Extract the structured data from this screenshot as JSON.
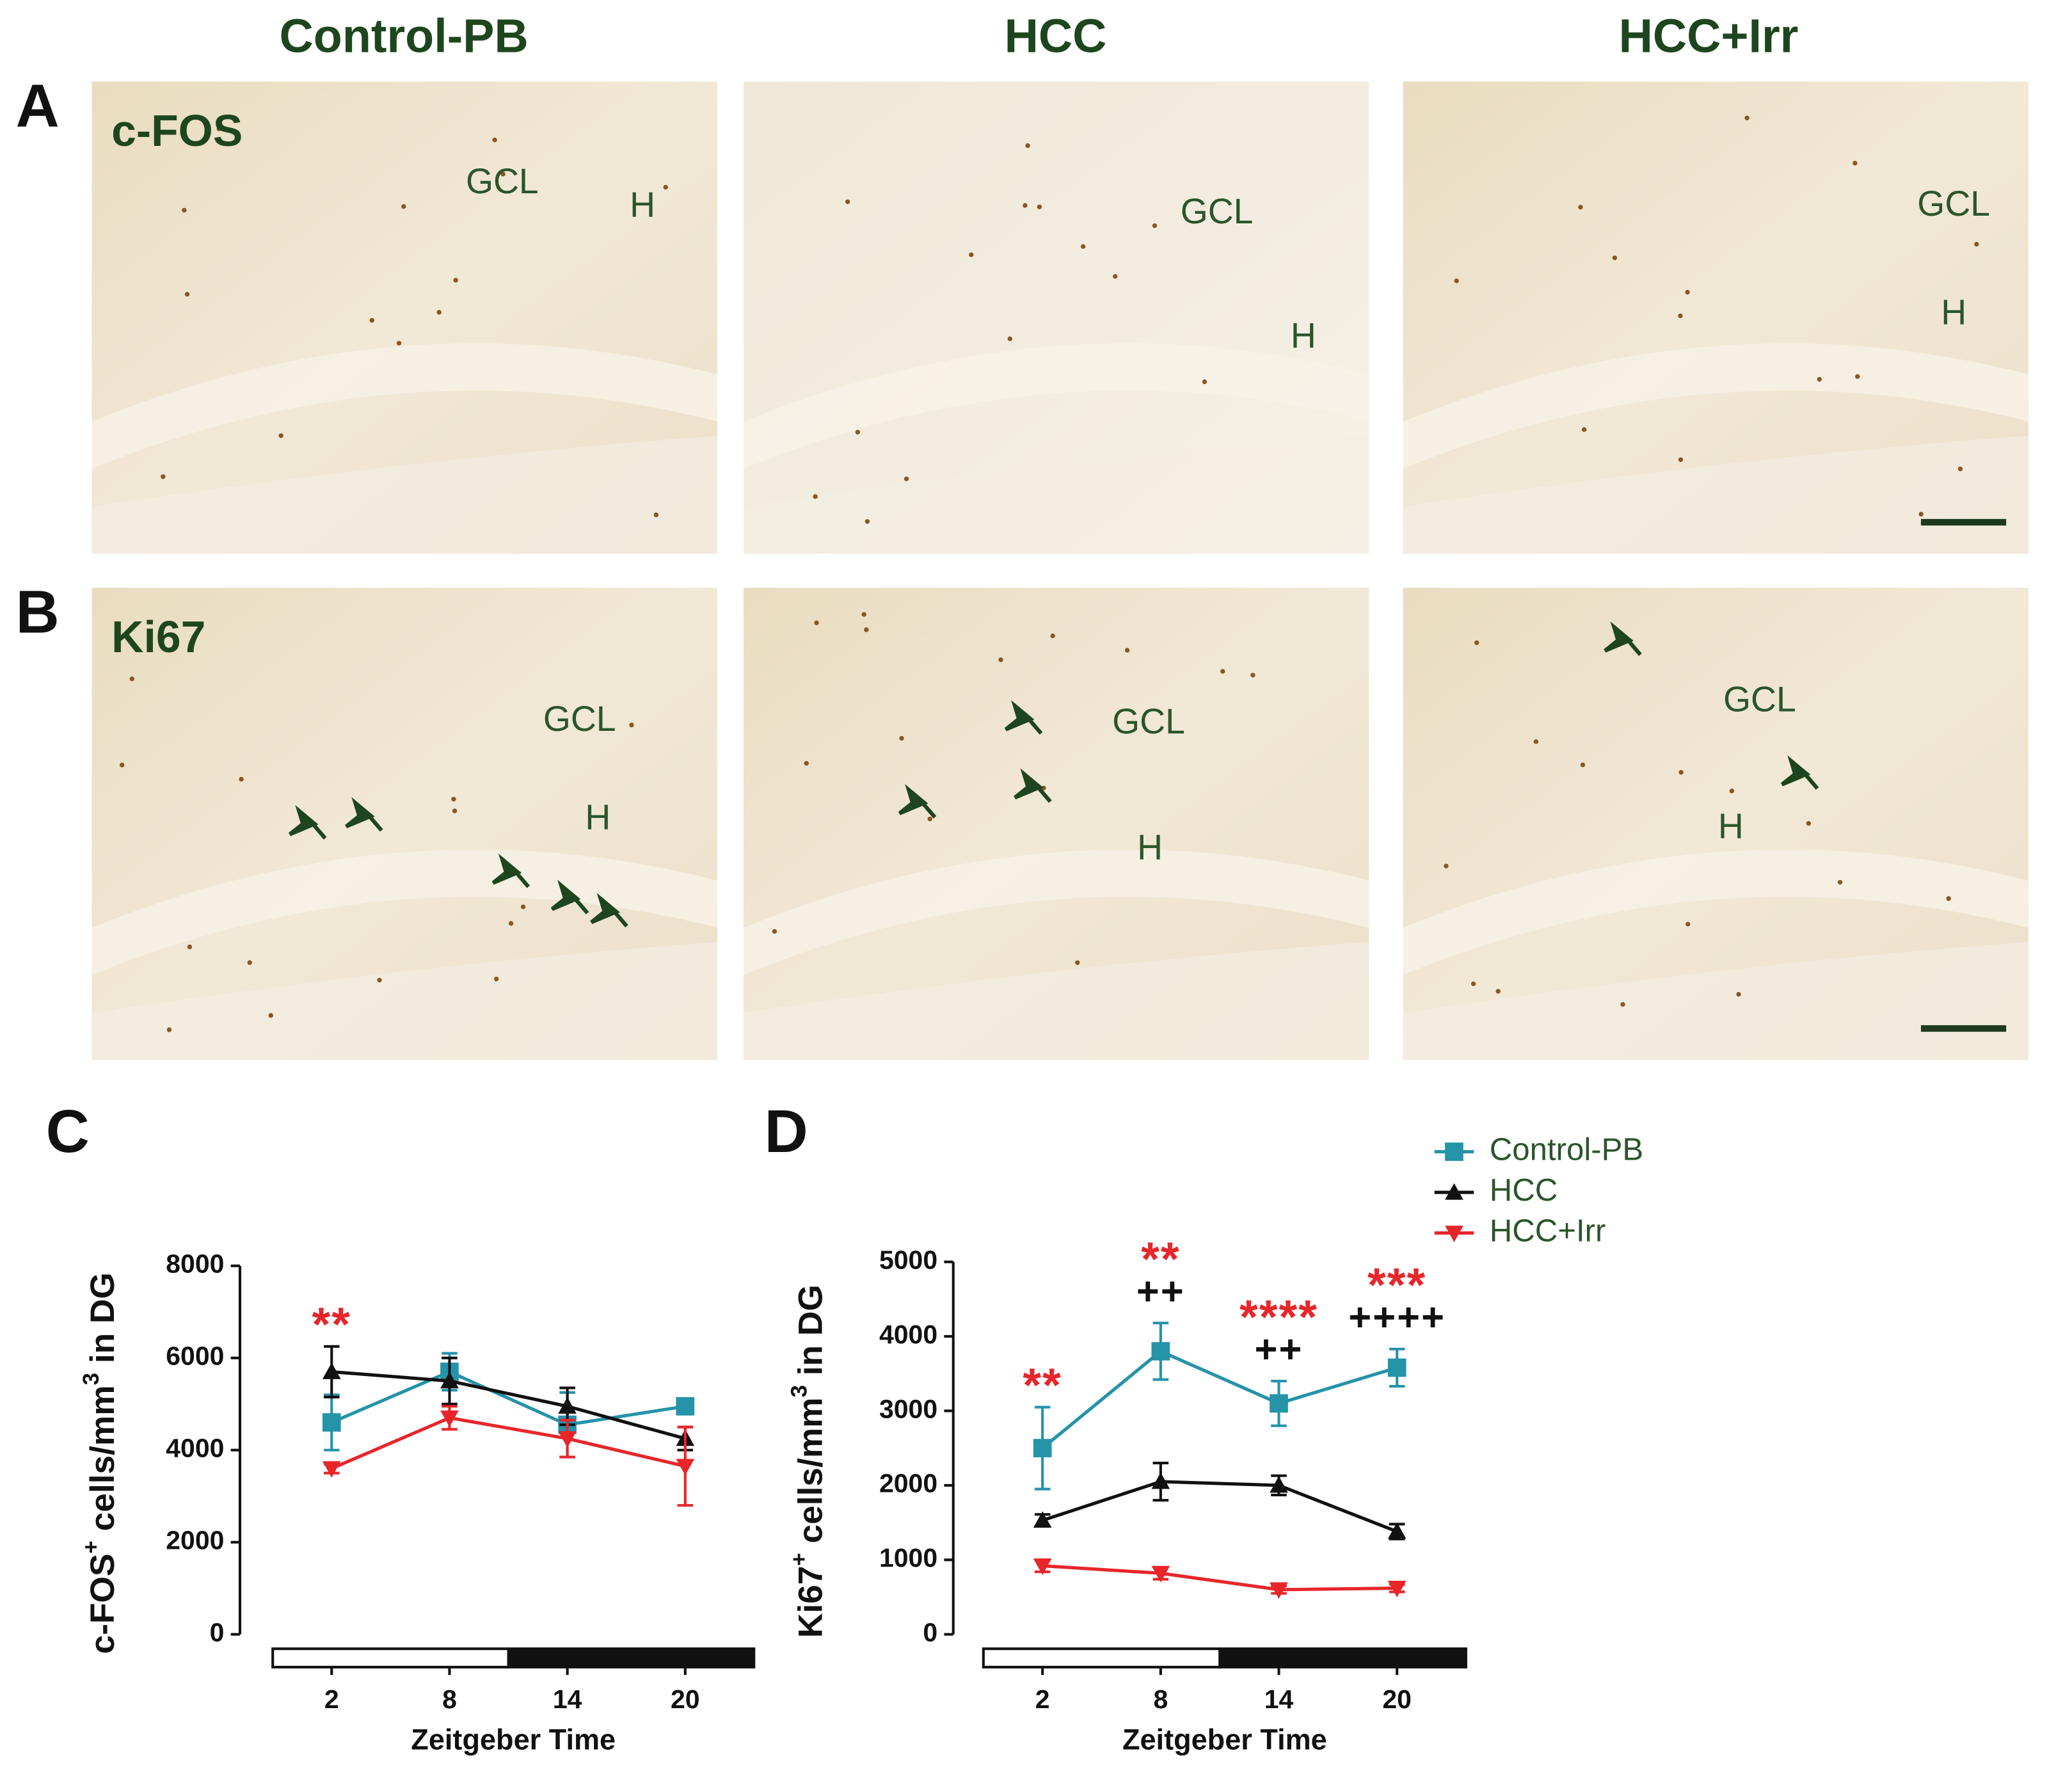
{
  "figure": {
    "columns": [
      "Control-PB",
      "HCC",
      "HCC+Irr"
    ],
    "rows": [
      {
        "letter": "A",
        "stain": "c-FOS",
        "images": [
          {
            "labels": [
              "GCL",
              "H"
            ]
          },
          {
            "labels": [
              "GCL",
              "H"
            ]
          },
          {
            "labels": [
              "GCL",
              "H"
            ]
          }
        ]
      },
      {
        "letter": "B",
        "stain": "Ki67",
        "images": [
          {
            "labels": [
              "GCL",
              "H"
            ]
          },
          {
            "labels": [
              "GCL",
              "H"
            ]
          },
          {
            "labels": [
              "GCL",
              "H"
            ]
          }
        ]
      }
    ]
  },
  "chart_data": [
    {
      "type": "line",
      "panel": "C",
      "xlabel": "Zeitgeber Time",
      "ylabel": [
        "c-FOS",
        "+",
        " cells/mm",
        "3",
        " in DG"
      ],
      "x": [
        2,
        8,
        14,
        20
      ],
      "xlim": [
        -1,
        23.5
      ],
      "xticks": [
        2,
        8,
        14,
        20
      ],
      "ylim": [
        0,
        8000
      ],
      "yticks": [
        0,
        2000,
        4000,
        6000,
        8000
      ],
      "series": [
        {
          "name": "Control-PB",
          "color": "#2593a8",
          "marker": "square",
          "values": [
            4600,
            5700,
            4550,
            4950
          ],
          "errors": [
            600,
            400,
            700,
            60
          ]
        },
        {
          "name": "HCC",
          "color": "#111111",
          "marker": "triangle-up",
          "values": [
            5700,
            5500,
            4950,
            4250
          ],
          "errors": [
            550,
            500,
            400,
            250
          ]
        },
        {
          "name": "HCC+Irr",
          "color": "#e8262a",
          "marker": "triangle-down",
          "values": [
            3600,
            4700,
            4250,
            3650
          ],
          "errors": [
            100,
            250,
            400,
            850
          ]
        }
      ],
      "annotations": [
        {
          "x": 2,
          "text": "**",
          "color": "#e8262a"
        }
      ]
    },
    {
      "type": "line",
      "panel": "D",
      "xlabel": "Zeitgeber Time",
      "ylabel": [
        "Ki67",
        "+",
        " cells/mm",
        "3",
        " in DG"
      ],
      "x": [
        2,
        8,
        14,
        20
      ],
      "xlim": [
        -1,
        23.5
      ],
      "xticks": [
        2,
        8,
        14,
        20
      ],
      "ylim": [
        0,
        5000
      ],
      "yticks": [
        0,
        1000,
        2000,
        3000,
        4000,
        5000
      ],
      "legend": "upper right",
      "series": [
        {
          "name": "Control-PB",
          "color": "#2593a8",
          "marker": "square",
          "values": [
            2500,
            3800,
            3100,
            3580
          ],
          "errors": [
            550,
            380,
            300,
            250
          ]
        },
        {
          "name": "HCC",
          "color": "#111111",
          "marker": "triangle-up",
          "values": [
            1530,
            2050,
            2000,
            1380
          ],
          "errors": [
            80,
            250,
            130,
            100
          ]
        },
        {
          "name": "HCC+Irr",
          "color": "#e8262a",
          "marker": "triangle-down",
          "values": [
            920,
            820,
            600,
            620
          ],
          "errors": [
            80,
            80,
            50,
            50
          ]
        }
      ],
      "annotations": [
        {
          "x": 2,
          "text": "**",
          "color": "#e8262a"
        },
        {
          "x": 8,
          "text": "++",
          "color": "#111111"
        },
        {
          "x": 8,
          "text": "**",
          "color": "#e8262a"
        },
        {
          "x": 14,
          "text": "++",
          "color": "#111111"
        },
        {
          "x": 14,
          "text": "****",
          "color": "#e8262a"
        },
        {
          "x": 20,
          "text": "++++",
          "color": "#111111"
        },
        {
          "x": 20,
          "text": "***",
          "color": "#e8262a"
        }
      ]
    }
  ]
}
